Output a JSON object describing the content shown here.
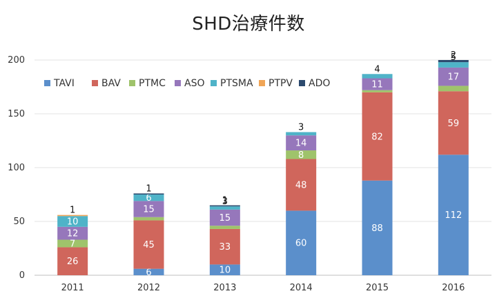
{
  "chart_data": {
    "type": "bar",
    "stacked": true,
    "title": "SHD治療件数",
    "categories": [
      "2011",
      "2012",
      "2013",
      "2014",
      "2015",
      "2016"
    ],
    "series": [
      {
        "name": "TAVI",
        "color": "#5b8fcb",
        "values": [
          0,
          6,
          10,
          60,
          88,
          112
        ]
      },
      {
        "name": "BAV",
        "color": "#d0665c",
        "values": [
          26,
          45,
          33,
          48,
          82,
          59
        ]
      },
      {
        "name": "PTMC",
        "color": "#9fc36b",
        "values": [
          7,
          3,
          3,
          8,
          2,
          5
        ]
      },
      {
        "name": "ASO",
        "color": "#9677bb",
        "values": [
          12,
          15,
          15,
          14,
          11,
          17
        ]
      },
      {
        "name": "PTSMA",
        "color": "#4fb3c8",
        "values": [
          10,
          6,
          3,
          3,
          4,
          5
        ]
      },
      {
        "name": "PTPV",
        "color": "#f0a556",
        "values": [
          1,
          0,
          0,
          0,
          0,
          0
        ]
      },
      {
        "name": "ADO",
        "color": "#2c4a6e",
        "values": [
          0,
          1,
          1,
          0,
          0,
          2
        ]
      }
    ],
    "ylim": [
      0,
      200
    ],
    "yticks": [
      0,
      50,
      100,
      150,
      200
    ],
    "grid": true,
    "legend": "top-left"
  }
}
